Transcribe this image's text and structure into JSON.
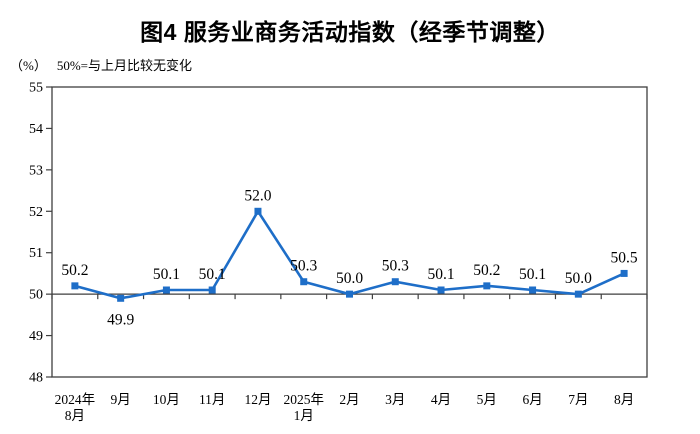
{
  "chart_data": {
    "type": "line",
    "title": "图4  服务业商务活动指数（经季节调整）",
    "unit_label": "（%）",
    "note": "50%=与上月比较无变化",
    "categories": [
      "2024年\n8月",
      "9月",
      "10月",
      "11月",
      "12月",
      "2025年\n1月",
      "2月",
      "3月",
      "4月",
      "5月",
      "6月",
      "7月",
      "8月"
    ],
    "series": [
      {
        "name": "服务业商务活动指数",
        "values": [
          50.2,
          49.9,
          50.1,
          50.1,
          52.0,
          50.3,
          50.0,
          50.3,
          50.1,
          50.2,
          50.1,
          50.0,
          50.5
        ],
        "point_labels": [
          "50.2",
          "49.9",
          "50.1",
          "50.1",
          "52.0",
          "50.3",
          "50.0",
          "50.3",
          "50.1",
          "50.2",
          "50.1",
          "50.0",
          "50.5"
        ],
        "labels_below_point_indices": [
          1
        ]
      }
    ],
    "ylim": [
      48,
      55
    ],
    "ytick_step": 1,
    "ytick_labels": [
      "48",
      "49",
      "50",
      "51",
      "52",
      "53",
      "54",
      "55"
    ],
    "reference_line_value": 50,
    "grid": "off",
    "legend": "none",
    "colors": {
      "line": "#1E6EC8",
      "marker": "#1E6EC8",
      "axis": "#3f3f3f",
      "text": "#000000",
      "background": "#ffffff"
    }
  }
}
